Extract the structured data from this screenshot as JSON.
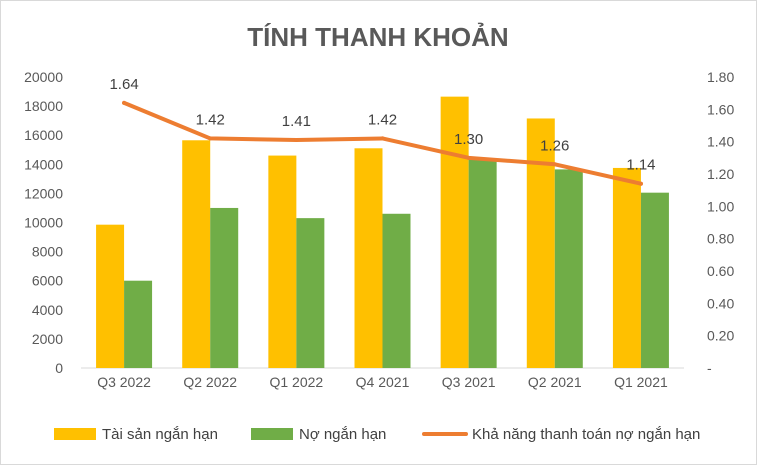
{
  "chart_data": {
    "type": "bar",
    "title": "TÍNH THANH KHOẢN",
    "categories": [
      "Q3 2022",
      "Q2 2022",
      "Q1 2022",
      "Q4 2021",
      "Q3 2021",
      "Q2 2021",
      "Q1 2021"
    ],
    "series": [
      {
        "name": "Tài sản ngắn hạn",
        "type": "bar",
        "axis": "left",
        "color": "#FFC000",
        "values": [
          9850,
          15650,
          14600,
          15100,
          18650,
          17150,
          13750
        ]
      },
      {
        "name": "Nợ ngắn hạn",
        "type": "bar",
        "axis": "left",
        "color": "#70AD47",
        "values": [
          6000,
          11000,
          10300,
          10600,
          14350,
          13650,
          12050
        ]
      },
      {
        "name": "Khả năng thanh toán nợ ngắn hạn",
        "type": "line",
        "axis": "right",
        "color": "#ED7D31",
        "values": [
          1.64,
          1.42,
          1.41,
          1.42,
          1.3,
          1.26,
          1.14
        ],
        "data_labels": [
          "1.64",
          "1.42",
          "1.41",
          "1.42",
          "1.30",
          "1.26",
          "1.14"
        ]
      }
    ],
    "y_left": {
      "ylim": [
        0,
        20000
      ],
      "ticks": [
        "0",
        "2000",
        "4000",
        "6000",
        "8000",
        "10000",
        "12000",
        "14000",
        "16000",
        "18000",
        "20000"
      ]
    },
    "y_right": {
      "ylim": [
        0,
        1.8
      ],
      "ticks": [
        "-",
        "0.20",
        "0.40",
        "0.60",
        "0.80",
        "1.00",
        "1.20",
        "1.40",
        "1.60",
        "1.80"
      ]
    },
    "grid": false,
    "legend": "bottom"
  }
}
